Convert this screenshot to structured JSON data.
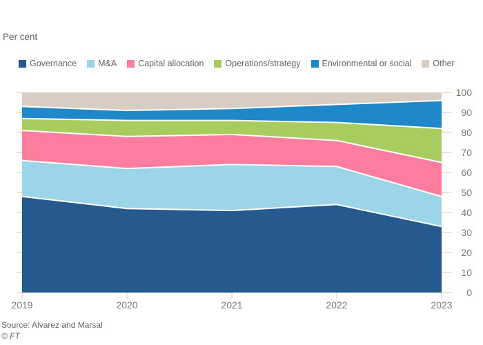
{
  "header": {
    "unit_label": "Per cent"
  },
  "chart_data": {
    "type": "area",
    "stacked": true,
    "unit": "Per cent",
    "x": [
      2019,
      2020,
      2021,
      2022,
      2023
    ],
    "x_tick_labels": [
      "2019",
      "2020",
      "2021",
      "2022",
      "2023"
    ],
    "series": [
      {
        "name": "Governance",
        "color": "#265a8f",
        "values": [
          48,
          42,
          41,
          44,
          33
        ]
      },
      {
        "name": "M&A",
        "color": "#9cd5e7",
        "values": [
          18,
          20,
          23,
          19,
          15
        ]
      },
      {
        "name": "Capital allocation",
        "color": "#fd7d9e",
        "values": [
          15,
          16,
          15,
          13,
          17
        ]
      },
      {
        "name": "Operations/strategy",
        "color": "#a9cc5f",
        "values": [
          6,
          8,
          7,
          9,
          17
        ]
      },
      {
        "name": "Environmental or social",
        "color": "#1f88c9",
        "values": [
          6,
          5,
          6,
          9,
          14
        ]
      },
      {
        "name": "Other",
        "color": "#d7cdc3",
        "values": [
          7,
          9,
          8,
          6,
          4
        ]
      }
    ],
    "ylim": [
      0,
      100
    ],
    "yticks": [
      0,
      10,
      20,
      30,
      40,
      50,
      60,
      70,
      80,
      90,
      100
    ],
    "y_axis_side": "right",
    "grid": false,
    "legend_position": "top",
    "colors": {
      "axis_label": "#7f7870",
      "tick_mark": "#efe2d3",
      "series_separator": "#ffffff"
    }
  },
  "footer": {
    "source": "Source: Alvarez and Marsal",
    "credit": "© FT"
  }
}
